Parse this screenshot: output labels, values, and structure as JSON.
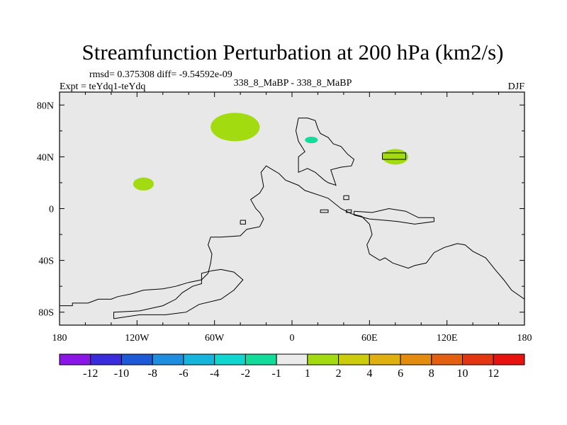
{
  "chart_data": {
    "type": "heatmap",
    "title": "Streamfunction Perturbation at 200 hPa (km2/s)",
    "stats_line": "rmsd= 0.375308 diff= -9.54592e-09",
    "case_line": "338_8_MaBP - 338_8_MaBP",
    "expt_line": "Expt = teYdq1-teYdq",
    "season": "DJF",
    "xlim": [
      -180,
      180
    ],
    "ylim": [
      -90,
      90
    ],
    "x_ticks": [
      {
        "value": -180,
        "label": "180"
      },
      {
        "value": -120,
        "label": "120W"
      },
      {
        "value": -60,
        "label": "60W"
      },
      {
        "value": 0,
        "label": "0"
      },
      {
        "value": 60,
        "label": "60E"
      },
      {
        "value": 120,
        "label": "120E"
      },
      {
        "value": 180,
        "label": "180"
      }
    ],
    "y_ticks": [
      {
        "value": 80,
        "label": "80N"
      },
      {
        "value": 40,
        "label": "40N"
      },
      {
        "value": 0,
        "label": "0"
      },
      {
        "value": -40,
        "label": "40S"
      },
      {
        "value": -80,
        "label": "80S"
      }
    ],
    "background_color": "#e8e8e8",
    "colorbar": {
      "colors": [
        "#8a16e8",
        "#3a2cdc",
        "#1e5ad8",
        "#1e8ee0",
        "#16b6dc",
        "#10d6d0",
        "#12dc9a",
        "#ebebeb",
        "#a2dc10",
        "#cccc0c",
        "#e0b010",
        "#e48c0e",
        "#e46010",
        "#e43612",
        "#e8120e"
      ],
      "labels": [
        "-12",
        "-10",
        "-8",
        "-6",
        "-4",
        "-2",
        "-1",
        "1",
        "2",
        "4",
        "6",
        "8",
        "10",
        "12"
      ]
    },
    "features": [
      {
        "name": "positive-anomaly",
        "level": "1 to 2",
        "color": "#a2dc10",
        "center": [
          -44,
          63
        ],
        "radius": [
          19,
          11
        ]
      },
      {
        "name": "positive-anomaly",
        "level": "1 to 2",
        "color": "#a2dc10",
        "center": [
          -115,
          19
        ],
        "radius": [
          8,
          5
        ]
      },
      {
        "name": "positive-anomaly",
        "level": "1 to 2",
        "color": "#a2dc10",
        "center": [
          80,
          40
        ],
        "radius": [
          10,
          6
        ]
      },
      {
        "name": "negative-anomaly",
        "level": "-2 to -1",
        "color": "#12dc9a",
        "center": [
          15,
          53
        ],
        "radius": [
          5,
          2.5
        ]
      }
    ],
    "coastlines": [
      {
        "name": "north-america",
        "points": [
          [
            -180,
            -72
          ],
          [
            -180,
            -75
          ],
          [
            -170,
            -75
          ],
          [
            -170,
            -73
          ],
          [
            -158,
            -73
          ],
          [
            -150,
            -70
          ],
          [
            -140,
            -70
          ],
          [
            -135,
            -68
          ],
          [
            -125,
            -66
          ],
          [
            -115,
            -63
          ],
          [
            -100,
            -62
          ],
          [
            -90,
            -60
          ],
          [
            -80,
            -57
          ],
          [
            -70,
            -55
          ],
          [
            -65,
            -50
          ],
          [
            -63,
            -42
          ],
          [
            -62,
            -35
          ],
          [
            -65,
            -28
          ],
          [
            -63,
            -22
          ],
          [
            -55,
            -22
          ],
          [
            -40,
            -21
          ],
          [
            -35,
            -16
          ],
          [
            -25,
            -14
          ],
          [
            -22,
            -8
          ],
          [
            -25,
            -3
          ],
          [
            -28,
            0
          ],
          [
            -32,
            7
          ],
          [
            -25,
            12
          ],
          [
            -22,
            17
          ],
          [
            -24,
            28
          ],
          [
            -20,
            33
          ],
          [
            -15,
            30
          ],
          [
            -10,
            27
          ],
          [
            -5,
            22
          ],
          [
            5,
            18
          ],
          [
            10,
            14
          ],
          [
            22,
            10
          ],
          [
            28,
            8
          ],
          [
            38,
            0
          ],
          [
            46,
            -4
          ],
          [
            54,
            -6
          ],
          [
            60,
            -12
          ],
          [
            62,
            -20
          ],
          [
            58,
            -28
          ],
          [
            60,
            -35
          ],
          [
            68,
            -40
          ],
          [
            72,
            -38
          ],
          [
            78,
            -42
          ],
          [
            90,
            -46
          ],
          [
            95,
            -44
          ],
          [
            104,
            -42
          ],
          [
            110,
            -34
          ],
          [
            118,
            -30
          ],
          [
            128,
            -27
          ],
          [
            134,
            -28
          ],
          [
            140,
            -33
          ],
          [
            150,
            -38
          ],
          [
            158,
            -48
          ],
          [
            164,
            -55
          ],
          [
            170,
            -63
          ],
          [
            180,
            -70
          ]
        ]
      },
      {
        "name": "south-america",
        "points": [
          [
            -138,
            -85
          ],
          [
            -138,
            -80
          ],
          [
            -118,
            -79
          ],
          [
            -100,
            -75
          ],
          [
            -90,
            -70
          ],
          [
            -85,
            -65
          ],
          [
            -77,
            -60
          ],
          [
            -70,
            -58
          ],
          [
            -70,
            -50
          ],
          [
            -62,
            -48
          ],
          [
            -55,
            -47
          ],
          [
            -45,
            -49
          ],
          [
            -38,
            -55
          ],
          [
            -45,
            -63
          ],
          [
            -55,
            -70
          ],
          [
            -72,
            -74
          ],
          [
            -82,
            -80
          ],
          [
            -98,
            -82
          ],
          [
            -118,
            -82
          ],
          [
            -138,
            -85
          ]
        ]
      },
      {
        "name": "greenland-scandinavia",
        "points": [
          [
            5,
            70
          ],
          [
            12,
            70
          ],
          [
            18,
            68
          ],
          [
            20,
            62
          ],
          [
            22,
            58
          ],
          [
            28,
            55
          ],
          [
            32,
            50
          ],
          [
            38,
            48
          ],
          [
            43,
            42
          ],
          [
            48,
            38
          ],
          [
            46,
            33
          ],
          [
            38,
            32
          ],
          [
            30,
            30
          ],
          [
            32,
            24
          ],
          [
            34,
            18
          ],
          [
            28,
            20
          ],
          [
            25,
            22
          ],
          [
            18,
            28
          ],
          [
            12,
            31
          ],
          [
            5,
            28
          ],
          [
            5,
            40
          ],
          [
            10,
            44
          ],
          [
            5,
            52
          ],
          [
            3,
            60
          ],
          [
            5,
            70
          ]
        ]
      },
      {
        "name": "lake-outline",
        "points": [
          [
            70,
            43
          ],
          [
            88,
            43
          ],
          [
            88,
            38
          ],
          [
            70,
            38
          ],
          [
            70,
            43
          ]
        ]
      },
      {
        "name": "east-segment",
        "points": [
          [
            48,
            -2
          ],
          [
            62,
            -3
          ],
          [
            75,
            0
          ],
          [
            88,
            -2
          ],
          [
            98,
            -7
          ],
          [
            110,
            -7
          ],
          [
            110,
            -10
          ],
          [
            95,
            -12
          ],
          [
            82,
            -10
          ],
          [
            72,
            -9
          ],
          [
            60,
            -8
          ],
          [
            48,
            -5
          ],
          [
            48,
            -2
          ]
        ]
      },
      {
        "name": "island-a",
        "points": [
          [
            -40,
            -9
          ],
          [
            -36,
            -9
          ],
          [
            -36,
            -12
          ],
          [
            -40,
            -12
          ],
          [
            -40,
            -9
          ]
        ]
      },
      {
        "name": "island-b",
        "points": [
          [
            22,
            -1
          ],
          [
            28,
            -1
          ],
          [
            28,
            -3
          ],
          [
            22,
            -3
          ],
          [
            22,
            -1
          ]
        ]
      },
      {
        "name": "island-c",
        "points": [
          [
            40,
            10
          ],
          [
            44,
            10
          ],
          [
            44,
            7
          ],
          [
            40,
            7
          ],
          [
            40,
            10
          ]
        ]
      },
      {
        "name": "island-d",
        "points": [
          [
            42,
            -1
          ],
          [
            46,
            -1
          ],
          [
            46,
            -3
          ],
          [
            42,
            -3
          ],
          [
            42,
            -1
          ]
        ]
      }
    ]
  }
}
